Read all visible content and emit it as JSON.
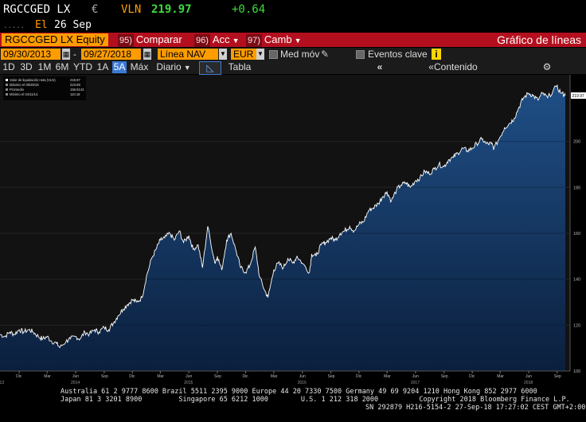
{
  "header": {
    "ticker": "RGCCGED LX",
    "currency_symbol": "€",
    "price_label": "VLN",
    "price": "219.97",
    "change": "+0.64",
    "date_prefix": "El",
    "date": "26 Sep"
  },
  "menu": {
    "security": "RGCCGED LX Equity",
    "compare_num": "95)",
    "compare_label": "Comparar",
    "actions_num": "96)",
    "actions_label": "Acc",
    "change_num": "97)",
    "change_label": "Camb",
    "chart_title": "Gráfico de líneas"
  },
  "controls": {
    "start_date": "09/30/2013",
    "separator": "-",
    "end_date": "09/27/2018",
    "line_type": "Línea NAV",
    "currency": "EUR",
    "moving_avg_label": "Med móv",
    "events_label": "Eventos clave",
    "events_icon": "i"
  },
  "toolbar": {
    "ranges": [
      "1D",
      "3D",
      "1M",
      "6M",
      "YTD",
      "1A",
      "5A",
      "Máx"
    ],
    "active_range": "5A",
    "frequency": "Diario",
    "table_label": "Tabla",
    "content_label": "Contenido"
  },
  "legend": {
    "rows": [
      {
        "label": "Valor de liquidación neta (VLN)",
        "value": "219.97"
      },
      {
        "label": "Máximo el 08/29/18",
        "value": "223.89"
      },
      {
        "label": "Promedio",
        "value": "156.9142"
      },
      {
        "label": "Mínimo el 04/11/14",
        "value": "110.18"
      }
    ]
  },
  "chart_data": {
    "type": "area",
    "series": [
      {
        "name": "Valor de liquidación neta (VLN)",
        "x": [
          "2013-09-30",
          "2013-10-15",
          "2013-11-01",
          "2013-11-15",
          "2013-12-01",
          "2013-12-15",
          "2014-01-01",
          "2014-01-15",
          "2014-02-01",
          "2014-02-15",
          "2014-03-01",
          "2014-03-15",
          "2014-04-01",
          "2014-04-11",
          "2014-05-01",
          "2014-05-15",
          "2014-06-01",
          "2014-06-15",
          "2014-07-01",
          "2014-07-15",
          "2014-08-01",
          "2014-08-15",
          "2014-09-01",
          "2014-09-15",
          "2014-10-01",
          "2014-10-15",
          "2014-11-01",
          "2014-11-15",
          "2014-12-01",
          "2014-12-15",
          "2015-01-01",
          "2015-01-15",
          "2015-02-01",
          "2015-02-15",
          "2015-03-01",
          "2015-03-15",
          "2015-04-01",
          "2015-04-15",
          "2015-05-01",
          "2015-05-15",
          "2015-06-01",
          "2015-06-15",
          "2015-07-01",
          "2015-07-15",
          "2015-08-01",
          "2015-08-24",
          "2015-09-01",
          "2015-09-15",
          "2015-10-01",
          "2015-10-15",
          "2015-11-01",
          "2015-11-15",
          "2015-12-01",
          "2015-12-15",
          "2016-01-01",
          "2016-01-15",
          "2016-02-01",
          "2016-02-11",
          "2016-03-01",
          "2016-03-15",
          "2016-04-01",
          "2016-04-15",
          "2016-05-01",
          "2016-05-15",
          "2016-06-01",
          "2016-06-24",
          "2016-07-01",
          "2016-07-15",
          "2016-08-01",
          "2016-08-15",
          "2016-09-01",
          "2016-09-15",
          "2016-10-01",
          "2016-10-15",
          "2016-11-01",
          "2016-11-15",
          "2016-12-01",
          "2016-12-15",
          "2017-01-01",
          "2017-01-15",
          "2017-02-01",
          "2017-02-15",
          "2017-03-01",
          "2017-03-15",
          "2017-04-01",
          "2017-04-15",
          "2017-05-01",
          "2017-05-15",
          "2017-06-01",
          "2017-06-15",
          "2017-07-01",
          "2017-07-15",
          "2017-08-01",
          "2017-08-15",
          "2017-09-01",
          "2017-09-15",
          "2017-10-01",
          "2017-10-15",
          "2017-11-01",
          "2017-11-15",
          "2017-12-01",
          "2017-12-15",
          "2018-01-01",
          "2018-01-15",
          "2018-02-01",
          "2018-02-09",
          "2018-03-01",
          "2018-03-15",
          "2018-04-01",
          "2018-04-15",
          "2018-05-01",
          "2018-05-15",
          "2018-06-01",
          "2018-06-15",
          "2018-07-01",
          "2018-07-15",
          "2018-08-01",
          "2018-08-29",
          "2018-09-15",
          "2018-09-27"
        ],
        "values": [
          116,
          115,
          117,
          116,
          118,
          117,
          118,
          117,
          115,
          114,
          115,
          113,
          112,
          110.2,
          113,
          114,
          115,
          114,
          117,
          116,
          118,
          117,
          119,
          118,
          121,
          124,
          127,
          129,
          131,
          130,
          132,
          141,
          149,
          153,
          157,
          158,
          160,
          157,
          161,
          156,
          159,
          153,
          155,
          145,
          163,
          147,
          150,
          144,
          157,
          160,
          152,
          145,
          143,
          146,
          154,
          141,
          135,
          132,
          144,
          147,
          145,
          149,
          147,
          150,
          147,
          143,
          151,
          150,
          155,
          156,
          158,
          157,
          160,
          161,
          163,
          161,
          164,
          165,
          170,
          171,
          173,
          176,
          178,
          174,
          179,
          181,
          182,
          180,
          183,
          184,
          187,
          186,
          188,
          190,
          189,
          192,
          193,
          195,
          197,
          196,
          197,
          199,
          201,
          199,
          199,
          197,
          202,
          206,
          208,
          210,
          215,
          219,
          221,
          220,
          218,
          221,
          219,
          223.9,
          221,
          219.97
        ]
      }
    ],
    "x_tick_labels": [
      "Dic",
      "Mar",
      "Jun",
      "Sep",
      "Dic",
      "Mar",
      "Jun",
      "Sep",
      "Dic",
      "Mar",
      "Jun",
      "Sep",
      "Dic",
      "Mar",
      "Jun",
      "Sep",
      "Dic",
      "Mar",
      "Jun",
      "Sep"
    ],
    "year_labels": [
      "2013",
      "2014",
      "2015",
      "2016",
      "2017",
      "2018"
    ],
    "y_ticks": [
      "100",
      "120",
      "140",
      "160",
      "180",
      "200"
    ],
    "last_value_tag": "219.97",
    "ylim": [
      100,
      229
    ],
    "grid": true
  },
  "footer": {
    "line1": "Australia 61 2 9777 8600 Brazil 5511 2395 9000 Europe 44 20 7330 7500 Germany 49 69 9204 1210 Hong Kong 852 2977 6000",
    "line2": "Japan 81 3 3201 8900         Singapore 65 6212 1000        U.S. 1 212 318 2000          Copyright 2018 Bloomberg Finance L.P.",
    "line3": "SN 292879 H216-5154-2 27-Sep-18 17:27:02 CEST GMT+2:00"
  },
  "colors": {
    "accent_orange": "#ff9c00",
    "menu_red": "#b40f1e",
    "area_fill": "#163a66",
    "line": "#ffffff",
    "price_green": "#3ddc3d"
  }
}
